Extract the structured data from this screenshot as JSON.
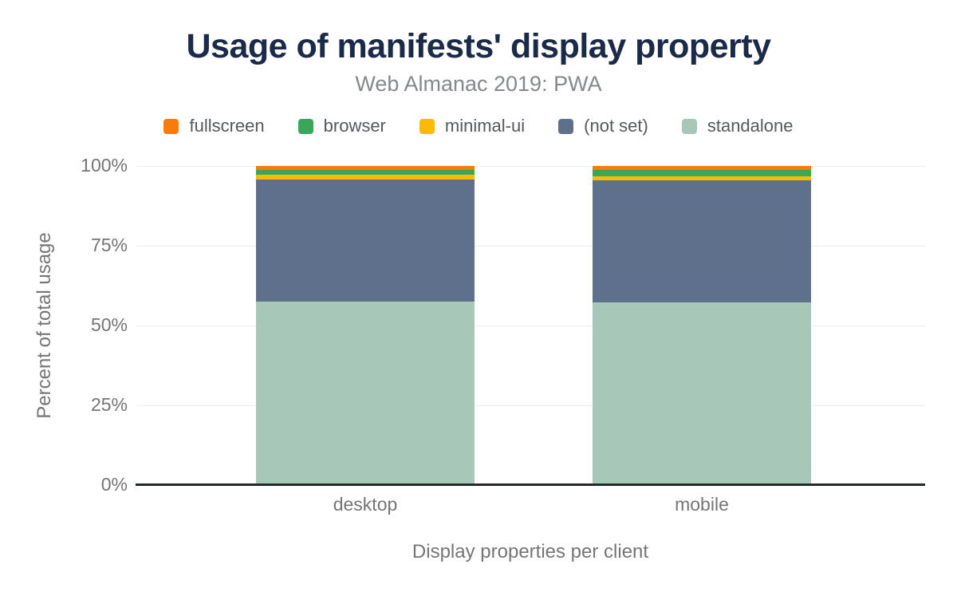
{
  "header": {
    "title": "Usage of manifests' display property",
    "subtitle": "Web Almanac 2019: PWA"
  },
  "chart_data": {
    "type": "bar",
    "stacked": true,
    "categories": [
      "desktop",
      "mobile"
    ],
    "series": [
      {
        "name": "fullscreen",
        "color": "#FA7B0A",
        "values": [
          1.2,
          1.2
        ]
      },
      {
        "name": "browser",
        "color": "#39A659",
        "values": [
          1.5,
          2.0
        ]
      },
      {
        "name": "minimal-ui",
        "color": "#FBBB05",
        "values": [
          1.5,
          1.3
        ]
      },
      {
        "name": "(not set)",
        "color": "#5F708C",
        "values": [
          38.4,
          38.2
        ]
      },
      {
        "name": "standalone",
        "color": "#A7C8B8",
        "values": [
          57.4,
          57.3
        ]
      }
    ],
    "title": "Usage of manifests' display property",
    "subtitle": "Web Almanac 2019: PWA",
    "xlabel": "Display properties per client",
    "ylabel": "Percent of total usage",
    "yticks": [
      "0%",
      "25%",
      "50%",
      "75%",
      "100%"
    ],
    "ylim": [
      0,
      100
    ],
    "grid": true,
    "legend_position": "top"
  },
  "colors": {
    "title": "#1B2A49",
    "subtitle": "#85888C",
    "axis_text": "#757575",
    "legend_text": "#55585C",
    "gridline": "#EFEFEF",
    "baseline": "#24292E"
  }
}
